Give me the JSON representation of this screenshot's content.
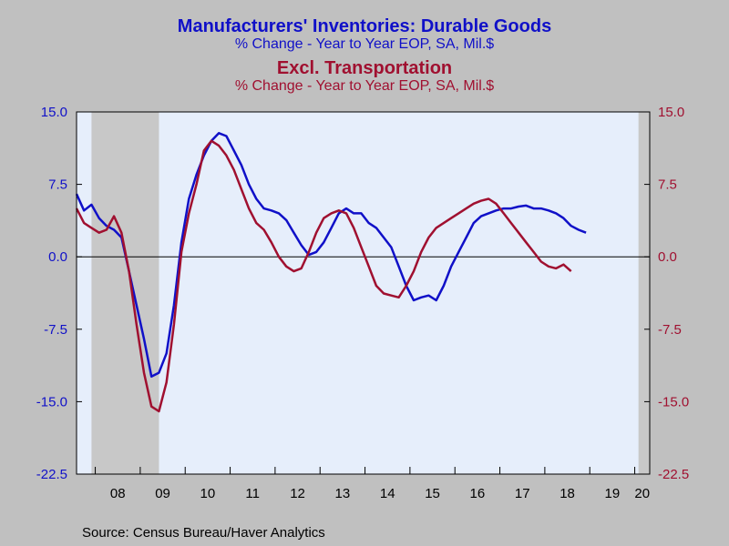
{
  "header": {
    "title_1": "Manufacturers' Inventories: Durable Goods",
    "subtitle_1": "% Change - Year to Year     EOP, SA, Mil.$",
    "title_2": "Excl. Transportation",
    "subtitle_2": "% Change - Year to Year     EOP, SA, Mil.$"
  },
  "source": "Source:  Census Bureau/Haver Analytics",
  "colors": {
    "blue": "#1010c8",
    "red": "#a01030",
    "plot_background": "#e6eefb",
    "recession": "#c8c8c8",
    "outer": "#c0c0c0"
  },
  "chart_data": {
    "type": "line",
    "x_tick_labels": [
      "08",
      "09",
      "10",
      "11",
      "12",
      "13",
      "14",
      "15",
      "16",
      "17",
      "18",
      "19",
      "20"
    ],
    "xlim": [
      "2007-08",
      "2020-05"
    ],
    "ylim": [
      -22.5,
      15.0
    ],
    "yticks": [
      15.0,
      7.5,
      0.0,
      -7.5,
      -15.0,
      -22.5
    ],
    "left_axis_labels": [
      "15.0",
      "7.5",
      "0.0",
      "-7.5",
      "-15.0",
      "-22.5"
    ],
    "right_axis_labels": [
      "15.0",
      "7.5",
      "0.0",
      "-7.5",
      "-15.0",
      "-22.5"
    ],
    "zero_line": true,
    "grid": false,
    "recession_shading": [
      {
        "start": "2007-12",
        "end": "2009-06"
      },
      {
        "start": "2020-02",
        "end": "2020-05"
      }
    ],
    "series": [
      {
        "color": "#1010c8",
        "axis": "left",
        "points": [
          [
            "2007-08",
            6.5
          ],
          [
            "2007-10",
            4.8
          ],
          [
            "2007-12",
            5.4
          ],
          [
            "2008-02",
            4.0
          ],
          [
            "2008-04",
            3.2
          ],
          [
            "2008-06",
            2.8
          ],
          [
            "2008-08",
            2.0
          ],
          [
            "2008-10",
            -1.5
          ],
          [
            "2008-12",
            -5.0
          ],
          [
            "2009-02",
            -8.5
          ],
          [
            "2009-04",
            -12.4
          ],
          [
            "2009-06",
            -12.0
          ],
          [
            "2009-08",
            -10.0
          ],
          [
            "2009-10",
            -5.0
          ],
          [
            "2009-12",
            1.5
          ],
          [
            "2010-02",
            6.0
          ],
          [
            "2010-04",
            8.5
          ],
          [
            "2010-06",
            10.5
          ],
          [
            "2010-08",
            12.0
          ],
          [
            "2010-10",
            12.8
          ],
          [
            "2010-12",
            12.5
          ],
          [
            "2011-02",
            11.0
          ],
          [
            "2011-04",
            9.5
          ],
          [
            "2011-06",
            7.5
          ],
          [
            "2011-08",
            6.0
          ],
          [
            "2011-10",
            5.0
          ],
          [
            "2011-12",
            4.8
          ],
          [
            "2012-02",
            4.5
          ],
          [
            "2012-04",
            3.8
          ],
          [
            "2012-06",
            2.5
          ],
          [
            "2012-08",
            1.2
          ],
          [
            "2012-10",
            0.2
          ],
          [
            "2012-12",
            0.5
          ],
          [
            "2013-02",
            1.5
          ],
          [
            "2013-04",
            3.0
          ],
          [
            "2013-06",
            4.5
          ],
          [
            "2013-08",
            5.0
          ],
          [
            "2013-10",
            4.5
          ],
          [
            "2013-12",
            4.5
          ],
          [
            "2014-02",
            3.5
          ],
          [
            "2014-04",
            3.0
          ],
          [
            "2014-06",
            2.0
          ],
          [
            "2014-08",
            1.0
          ],
          [
            "2014-10",
            -1.0
          ],
          [
            "2014-12",
            -3.0
          ],
          [
            "2015-02",
            -4.5
          ],
          [
            "2015-04",
            -4.2
          ],
          [
            "2015-06",
            -4.0
          ],
          [
            "2015-08",
            -4.5
          ],
          [
            "2015-10",
            -3.0
          ],
          [
            "2015-12",
            -1.0
          ],
          [
            "2016-02",
            0.5
          ],
          [
            "2016-04",
            2.0
          ],
          [
            "2016-06",
            3.5
          ],
          [
            "2016-08",
            4.2
          ],
          [
            "2016-10",
            4.5
          ],
          [
            "2016-12",
            4.8
          ],
          [
            "2017-02",
            5.0
          ],
          [
            "2017-04",
            5.0
          ],
          [
            "2017-06",
            5.2
          ],
          [
            "2017-08",
            5.3
          ],
          [
            "2017-10",
            5.0
          ],
          [
            "2017-12",
            5.0
          ],
          [
            "2018-02",
            4.8
          ],
          [
            "2018-04",
            4.5
          ],
          [
            "2018-06",
            4.0
          ],
          [
            "2018-08",
            3.2
          ],
          [
            "2018-10",
            2.8
          ],
          [
            "2018-12",
            2.5
          ]
        ]
      },
      {
        "color": "#a01030",
        "axis": "left",
        "points": [
          [
            "2007-08",
            5.0
          ],
          [
            "2007-10",
            3.5
          ],
          [
            "2007-12",
            3.0
          ],
          [
            "2008-02",
            2.5
          ],
          [
            "2008-04",
            2.8
          ],
          [
            "2008-06",
            4.2
          ],
          [
            "2008-08",
            2.5
          ],
          [
            "2008-10",
            -1.5
          ],
          [
            "2008-12",
            -7.0
          ],
          [
            "2009-02",
            -12.0
          ],
          [
            "2009-04",
            -15.5
          ],
          [
            "2009-06",
            -16.0
          ],
          [
            "2009-08",
            -13.0
          ],
          [
            "2009-10",
            -7.0
          ],
          [
            "2009-12",
            0.5
          ],
          [
            "2010-02",
            4.5
          ],
          [
            "2010-04",
            7.5
          ],
          [
            "2010-06",
            11.0
          ],
          [
            "2010-08",
            12.0
          ],
          [
            "2010-10",
            11.5
          ],
          [
            "2010-12",
            10.5
          ],
          [
            "2011-02",
            9.0
          ],
          [
            "2011-04",
            7.0
          ],
          [
            "2011-06",
            5.0
          ],
          [
            "2011-08",
            3.5
          ],
          [
            "2011-10",
            2.8
          ],
          [
            "2011-12",
            1.5
          ],
          [
            "2012-02",
            0.0
          ],
          [
            "2012-04",
            -1.0
          ],
          [
            "2012-06",
            -1.5
          ],
          [
            "2012-08",
            -1.2
          ],
          [
            "2012-10",
            0.5
          ],
          [
            "2012-12",
            2.5
          ],
          [
            "2013-02",
            4.0
          ],
          [
            "2013-04",
            4.5
          ],
          [
            "2013-06",
            4.8
          ],
          [
            "2013-08",
            4.5
          ],
          [
            "2013-10",
            3.0
          ],
          [
            "2013-12",
            1.0
          ],
          [
            "2014-02",
            -1.0
          ],
          [
            "2014-04",
            -3.0
          ],
          [
            "2014-06",
            -3.8
          ],
          [
            "2014-08",
            -4.0
          ],
          [
            "2014-10",
            -4.2
          ],
          [
            "2014-12",
            -3.0
          ],
          [
            "2015-02",
            -1.5
          ],
          [
            "2015-04",
            0.5
          ],
          [
            "2015-06",
            2.0
          ],
          [
            "2015-08",
            3.0
          ],
          [
            "2015-10",
            3.5
          ],
          [
            "2015-12",
            4.0
          ],
          [
            "2016-02",
            4.5
          ],
          [
            "2016-04",
            5.0
          ],
          [
            "2016-06",
            5.5
          ],
          [
            "2016-08",
            5.8
          ],
          [
            "2016-10",
            6.0
          ],
          [
            "2016-12",
            5.5
          ],
          [
            "2017-02",
            4.5
          ],
          [
            "2017-04",
            3.5
          ],
          [
            "2017-06",
            2.5
          ],
          [
            "2017-08",
            1.5
          ],
          [
            "2017-10",
            0.5
          ],
          [
            "2017-12",
            -0.5
          ],
          [
            "2018-02",
            -1.0
          ],
          [
            "2018-04",
            -1.2
          ],
          [
            "2018-06",
            -0.8
          ],
          [
            "2018-08",
            -1.5
          ]
        ]
      }
    ]
  }
}
